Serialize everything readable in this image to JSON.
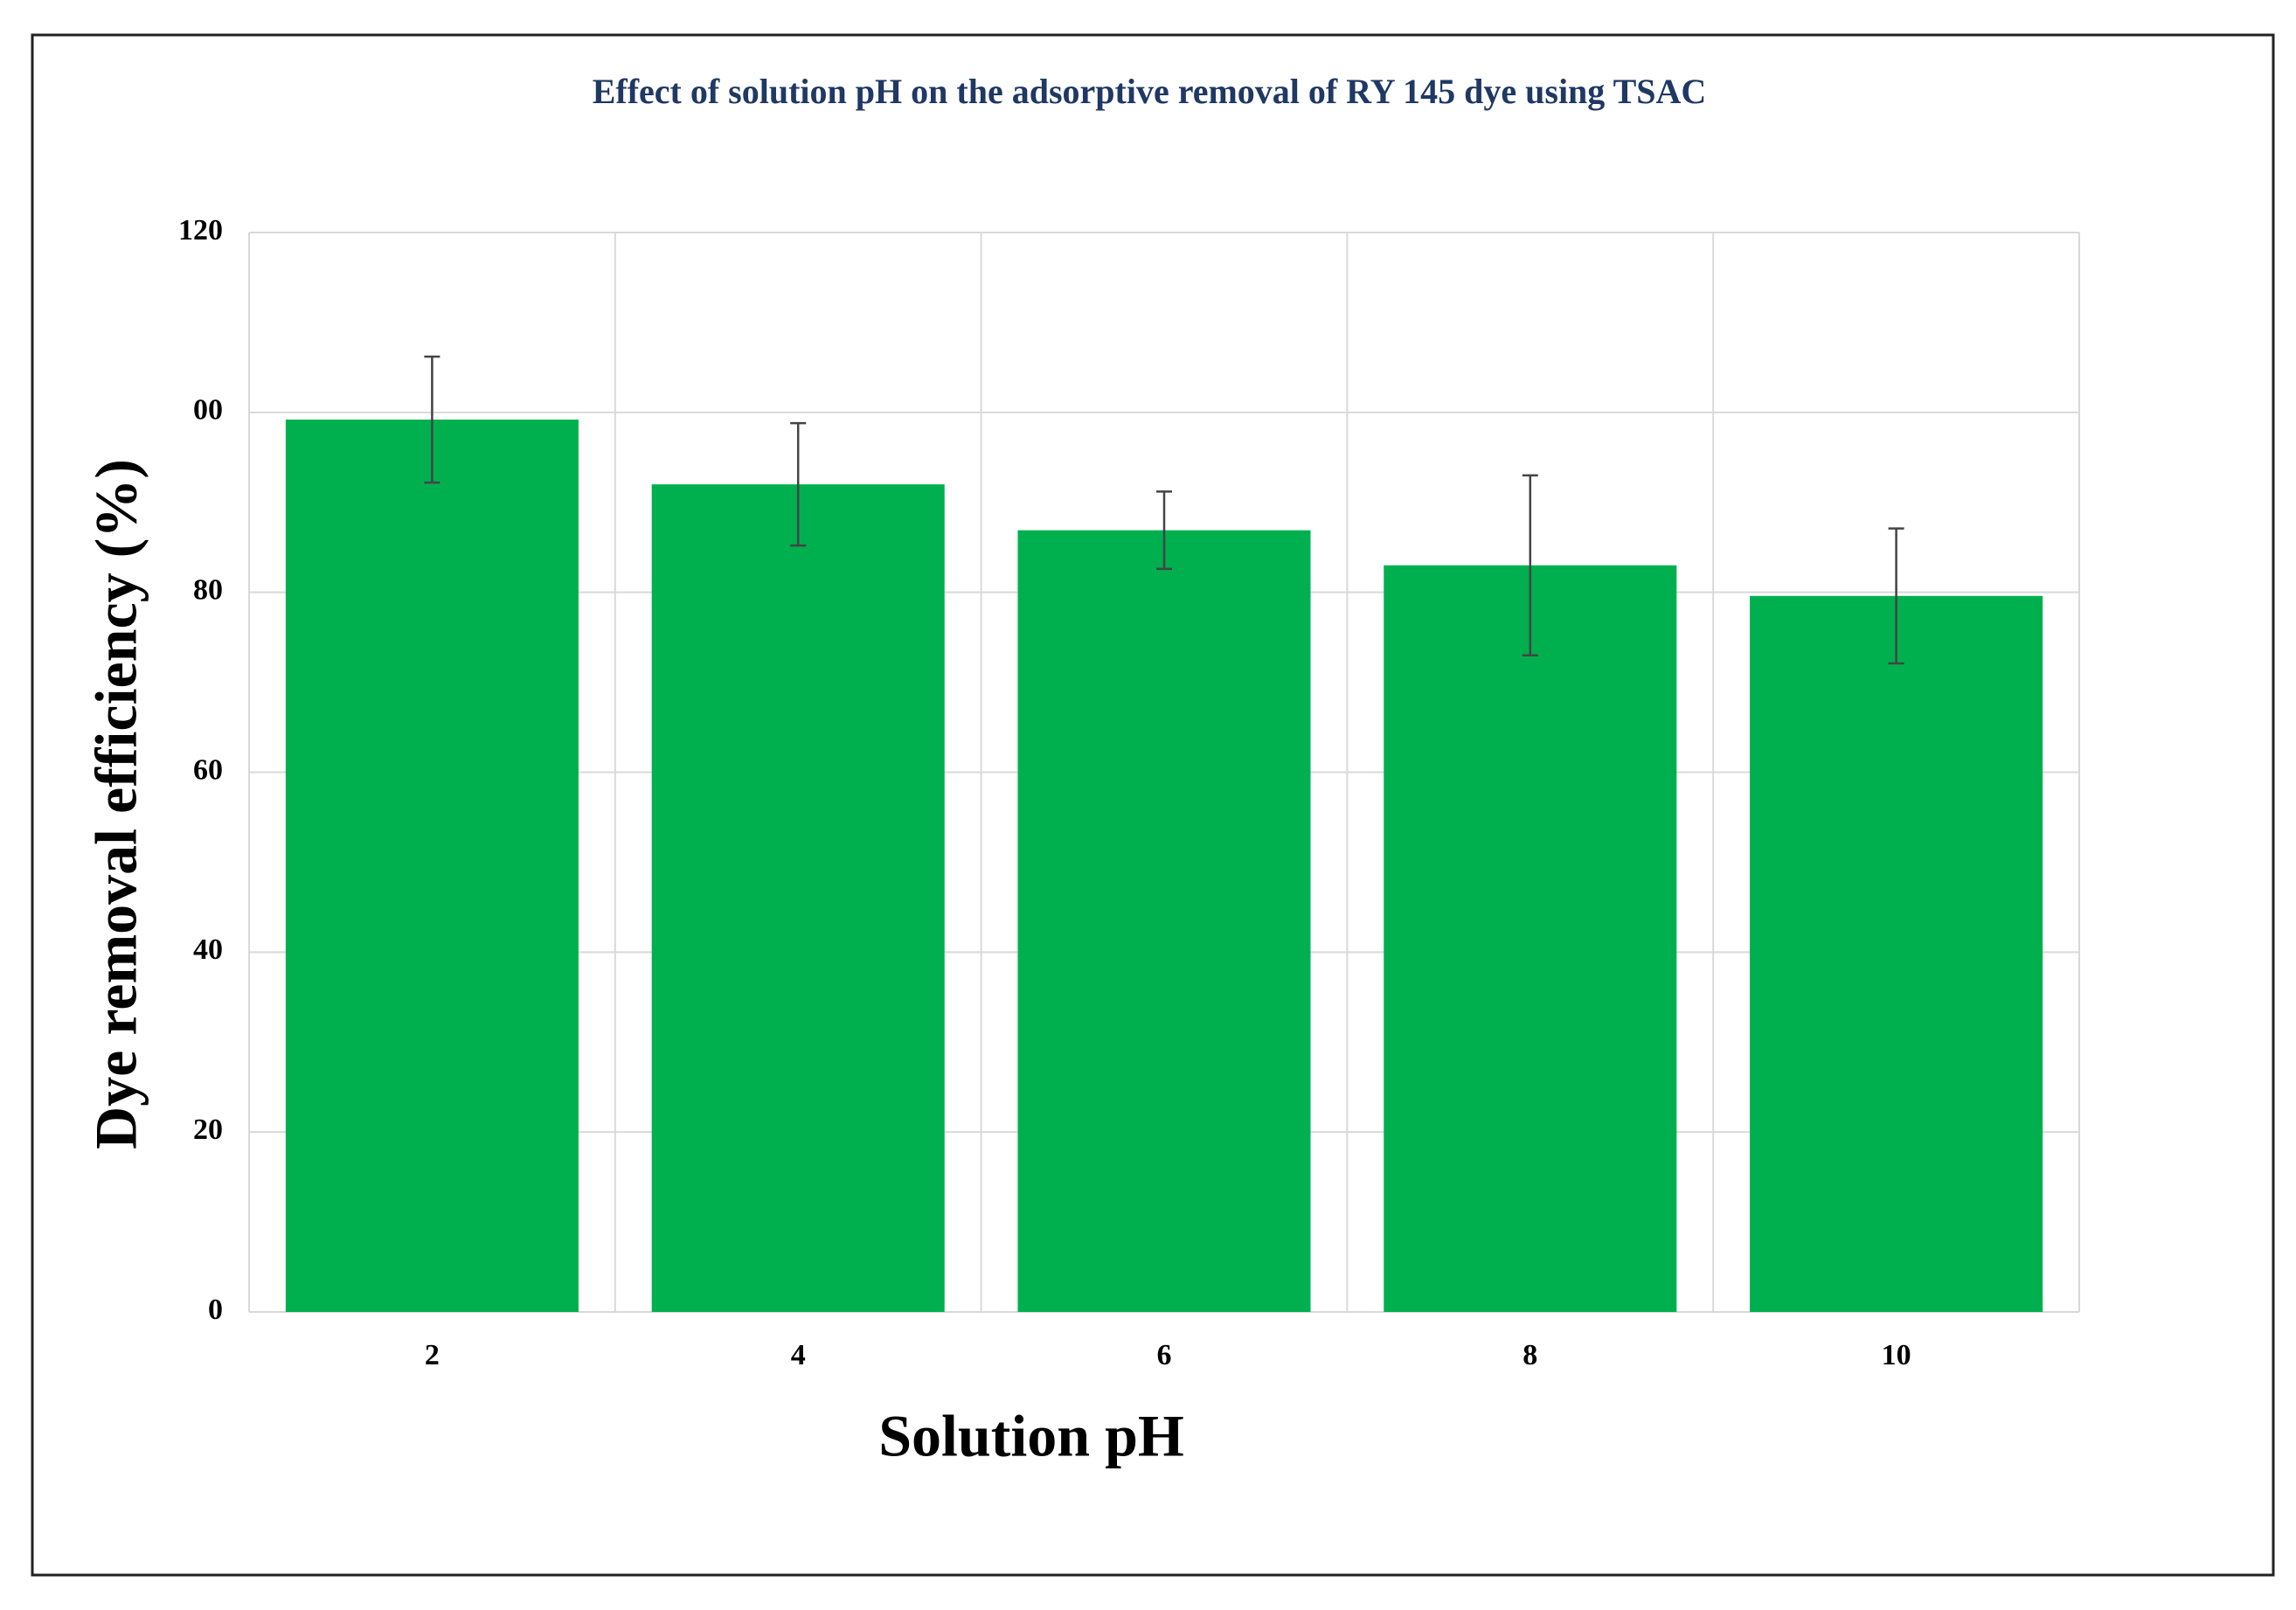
{
  "chart_data": {
    "type": "bar",
    "title": "Effect of solution pH on the adsorptive removal of RY 145 dye using TSAC",
    "x_label": "Solution pH",
    "y_label": "Dye removal efficiency (%)",
    "categories": [
      "2",
      "4",
      "6",
      "8",
      "10"
    ],
    "values": [
      99.2,
      92.0,
      86.9,
      83.0,
      79.6
    ],
    "errors": [
      7.0,
      6.8,
      4.3,
      10.0,
      7.5
    ],
    "color": "#00b04f",
    "ylim": [
      0,
      120
    ],
    "yticks": [
      0,
      20,
      40,
      60,
      80,
      {
        "value": 100,
        "label": "00"
      },
      120
    ],
    "grid": true
  }
}
